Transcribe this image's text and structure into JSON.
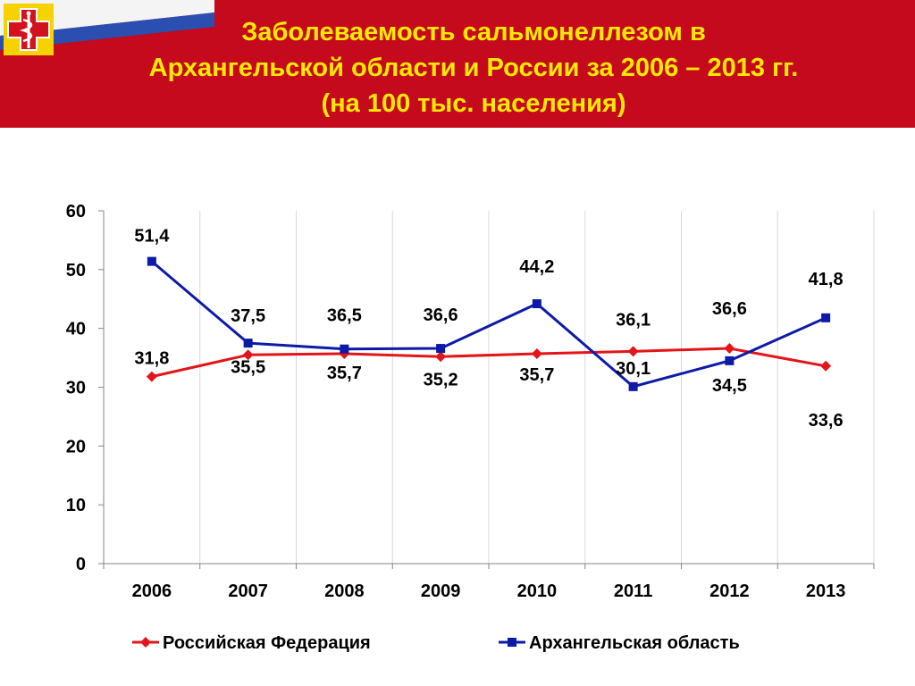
{
  "header": {
    "title_line1": "Заболеваемость сальмонеллезом в",
    "title_line2": "Архангельской области и России за 2006 – 2013 гг.",
    "title_line3": "(на 100 тыс. населения)",
    "background_color": "#c40a1c",
    "title_color": "#ffe900",
    "logo_icon": "medical-cross-caduceus-icon"
  },
  "chart_data": {
    "type": "line",
    "title": "",
    "xlabel": "",
    "ylabel": "",
    "categories": [
      "2006",
      "2007",
      "2008",
      "2009",
      "2010",
      "2011",
      "2012",
      "2013"
    ],
    "ylim": [
      0,
      60
    ],
    "yticks": [
      0,
      10,
      20,
      30,
      40,
      50,
      60
    ],
    "grid": "vertical",
    "legend_position": "bottom",
    "series": [
      {
        "name": "Российская Федерация",
        "color": "#e3151a",
        "marker": "diamond",
        "values": [
          31.8,
          35.5,
          35.7,
          35.2,
          35.7,
          36.1,
          36.6,
          33.6
        ],
        "labels": [
          "31,8",
          "35,5",
          "35,7",
          "35,2",
          "35,7",
          "36,1",
          "36,6",
          "33,6"
        ]
      },
      {
        "name": "Архангельская область",
        "color": "#0d1aa8",
        "marker": "square",
        "values": [
          51.4,
          37.5,
          36.5,
          36.6,
          44.2,
          30.1,
          34.5,
          41.8
        ],
        "labels": [
          "51,4",
          "37,5",
          "36,5",
          "36,6",
          "44,2",
          "30,1",
          "34,5",
          "41,8"
        ]
      }
    ]
  }
}
